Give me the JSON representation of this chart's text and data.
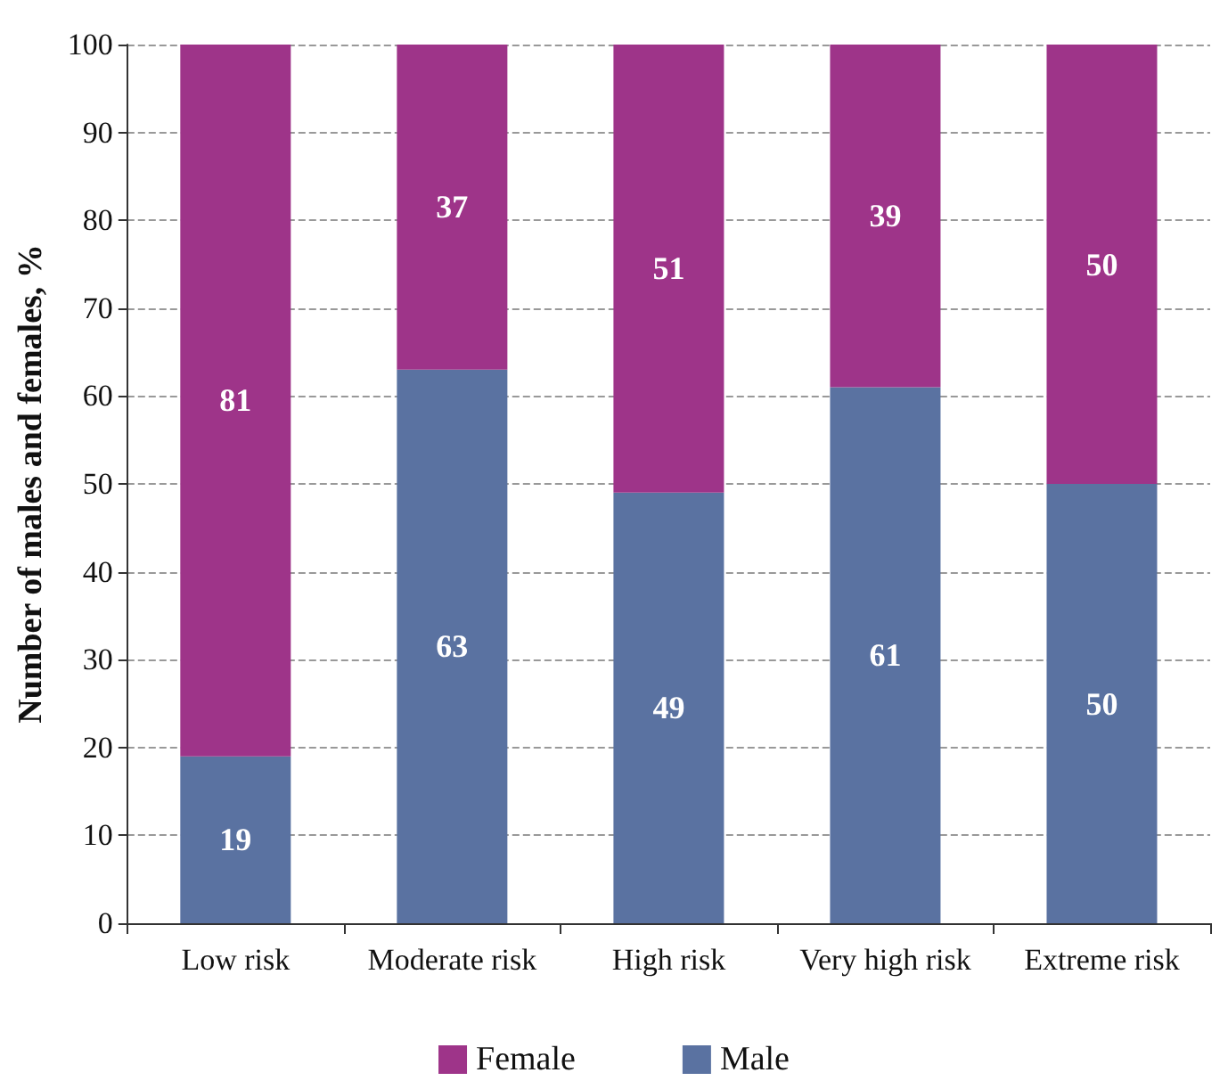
{
  "chart_data": {
    "type": "bar",
    "ylabel": "Number of males and females, %",
    "categories": [
      "Low risk",
      "Moderate risk",
      "High risk",
      "Very high risk",
      "Extreme risk"
    ],
    "series": [
      {
        "name": "Male",
        "color": "#5a72a1",
        "values": [
          19,
          63,
          49,
          61,
          50
        ]
      },
      {
        "name": "Female",
        "color": "#9e3489",
        "values": [
          81,
          37,
          51,
          39,
          50
        ]
      }
    ],
    "stacked": true,
    "data_labels": true,
    "ylim": [
      0,
      100
    ],
    "yticks": [
      0,
      10,
      20,
      30,
      40,
      50,
      60,
      70,
      80,
      90,
      100
    ],
    "grid": "y",
    "legend": "bottom"
  }
}
